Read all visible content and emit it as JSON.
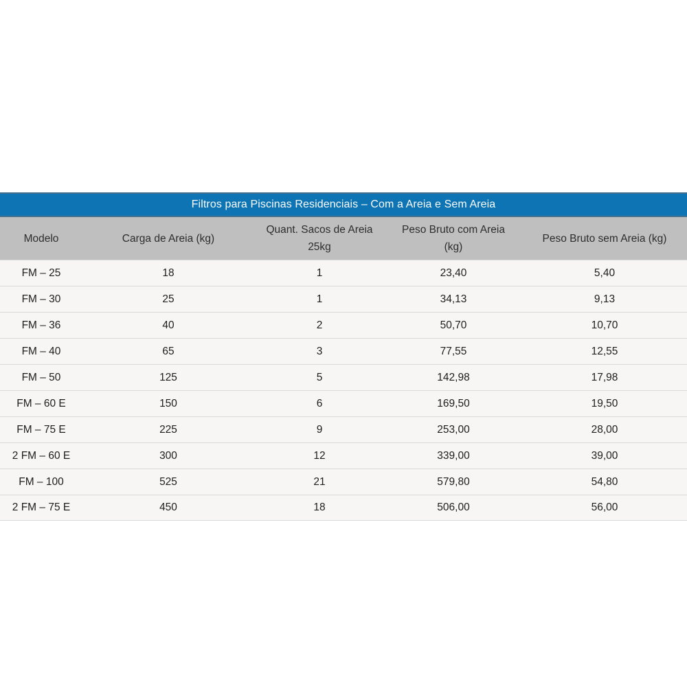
{
  "table": {
    "title": "Filtros para Piscinas Residenciais – Com a Areia e Sem Areia",
    "columns": [
      "Modelo",
      "Carga de Areia (kg)",
      "Quant. Sacos de Areia 25kg",
      "Peso Bruto com Areia (kg)",
      "Peso Bruto sem Areia (kg)"
    ],
    "rows": [
      {
        "modelo": "FM – 25",
        "carga_areia_kg": "18",
        "quant_sacos_25kg": "1",
        "peso_bruto_com_areia_kg": "23,40",
        "peso_bruto_sem_areia_kg": "5,40"
      },
      {
        "modelo": "FM – 30",
        "carga_areia_kg": "25",
        "quant_sacos_25kg": "1",
        "peso_bruto_com_areia_kg": "34,13",
        "peso_bruto_sem_areia_kg": "9,13"
      },
      {
        "modelo": "FM – 36",
        "carga_areia_kg": "40",
        "quant_sacos_25kg": "2",
        "peso_bruto_com_areia_kg": "50,70",
        "peso_bruto_sem_areia_kg": "10,70"
      },
      {
        "modelo": "FM – 40",
        "carga_areia_kg": "65",
        "quant_sacos_25kg": "3",
        "peso_bruto_com_areia_kg": "77,55",
        "peso_bruto_sem_areia_kg": "12,55"
      },
      {
        "modelo": "FM – 50",
        "carga_areia_kg": "125",
        "quant_sacos_25kg": "5",
        "peso_bruto_com_areia_kg": "142,98",
        "peso_bruto_sem_areia_kg": "17,98"
      },
      {
        "modelo": "FM – 60 E",
        "carga_areia_kg": "150",
        "quant_sacos_25kg": "6",
        "peso_bruto_com_areia_kg": "169,50",
        "peso_bruto_sem_areia_kg": "19,50"
      },
      {
        "modelo": "FM – 75 E",
        "carga_areia_kg": "225",
        "quant_sacos_25kg": "9",
        "peso_bruto_com_areia_kg": "253,00",
        "peso_bruto_sem_areia_kg": "28,00"
      },
      {
        "modelo": "2 FM – 60 E",
        "carga_areia_kg": "300",
        "quant_sacos_25kg": "12",
        "peso_bruto_com_areia_kg": "339,00",
        "peso_bruto_sem_areia_kg": "39,00"
      },
      {
        "modelo": "FM – 100",
        "carga_areia_kg": "525",
        "quant_sacos_25kg": "21",
        "peso_bruto_com_areia_kg": "579,80",
        "peso_bruto_sem_areia_kg": "54,80"
      },
      {
        "modelo": "2 FM – 75 E",
        "carga_areia_kg": "450",
        "quant_sacos_25kg": "18",
        "peso_bruto_com_areia_kg": "506,00",
        "peso_bruto_sem_areia_kg": "56,00"
      }
    ],
    "colors": {
      "title_bg": "#0e74b4",
      "title_border": "#44708e",
      "title_text": "#fdfeff",
      "header_bg": "#bfbfbf",
      "header_text": "#2d2d2d",
      "row_bg": "#f7f6f5",
      "row_border": "#d9d9d9",
      "cell_text": "#1d1d1d"
    }
  }
}
